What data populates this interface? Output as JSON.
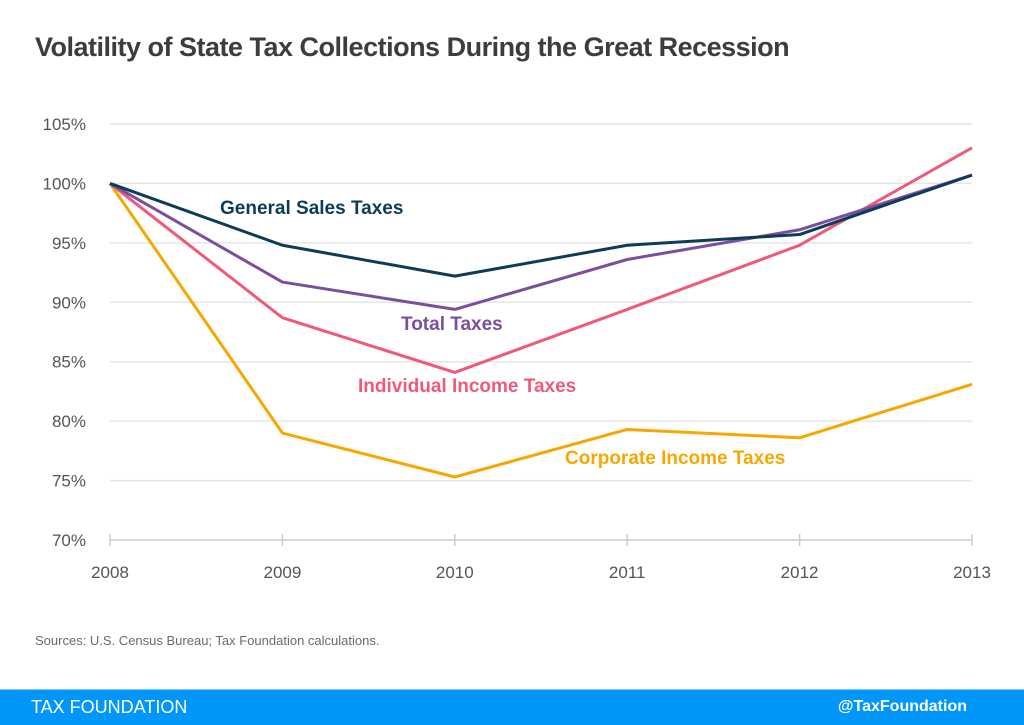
{
  "title": "Volatility of State Tax Collections During the Great Recession",
  "sources": "Sources: U.S. Census Bureau; Tax Foundation calculations.",
  "footer": {
    "brand": "TAX FOUNDATION",
    "handle": "@TaxFoundation",
    "color": "#0096fa"
  },
  "chart_data": {
    "type": "line",
    "title": "Volatility of State Tax Collections During the Great Recession",
    "xlabel": "",
    "ylabel": "",
    "x": [
      "2008",
      "2009",
      "2010",
      "2011",
      "2012",
      "2013"
    ],
    "ylim": [
      70,
      105
    ],
    "yticks": [
      70,
      75,
      80,
      85,
      90,
      95,
      100,
      105
    ],
    "ytick_labels": [
      "70%",
      "75%",
      "80%",
      "85%",
      "90%",
      "95%",
      "100%",
      "105%"
    ],
    "grid": true,
    "legend": "inline labels",
    "series": [
      {
        "name": "General Sales Taxes",
        "color": "#0d3d56",
        "values": [
          100,
          94.8,
          92.2,
          94.8,
          95.7,
          100.7
        ]
      },
      {
        "name": "Total Taxes",
        "color": "#7b4f9e",
        "values": [
          100,
          91.7,
          89.4,
          93.6,
          96.1,
          100.7
        ]
      },
      {
        "name": "Individual Income Taxes",
        "color": "#ef5a7a",
        "values": [
          100,
          88.7,
          84.1,
          89.4,
          94.8,
          103.0
        ]
      },
      {
        "name": "Corporate Income Taxes",
        "color": "#f7a800",
        "values": [
          100,
          79.0,
          75.3,
          79.3,
          78.6,
          83.1
        ]
      }
    ]
  }
}
